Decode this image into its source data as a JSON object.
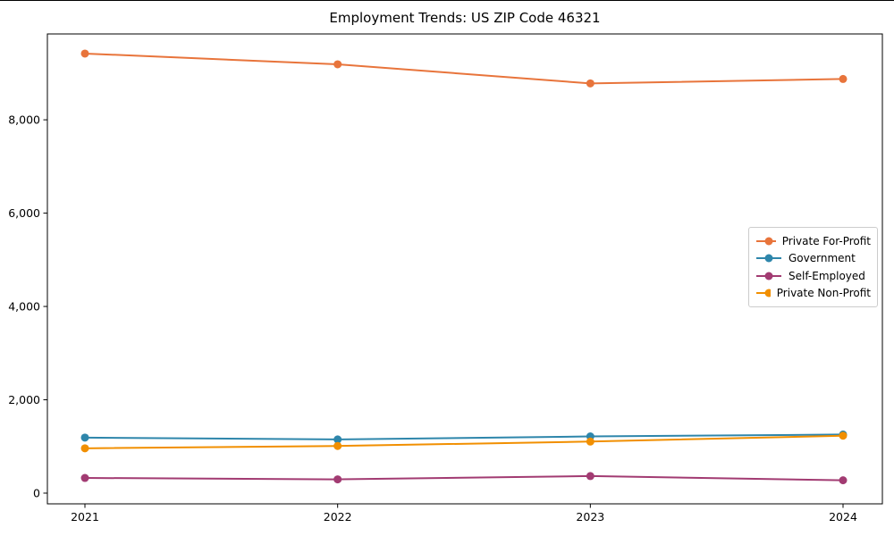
{
  "chart_data": {
    "type": "line",
    "title": "Employment Trends: US ZIP Code 46321",
    "x": [
      2021,
      2022,
      2023,
      2024
    ],
    "x_labels": [
      "2021",
      "2022",
      "2023",
      "2024"
    ],
    "series": [
      {
        "name": "Private For-Profit",
        "color": "#E8743B",
        "values": [
          9420,
          9190,
          8780,
          8875
        ]
      },
      {
        "name": "Government",
        "color": "#2E86AB",
        "values": [
          1190,
          1150,
          1215,
          1255
        ]
      },
      {
        "name": "Self-Employed",
        "color": "#A23B72",
        "values": [
          325,
          295,
          365,
          275
        ]
      },
      {
        "name": "Private Non-Profit",
        "color": "#F18F01",
        "values": [
          960,
          1010,
          1105,
          1230
        ]
      }
    ],
    "yticks": [
      0,
      2000,
      4000,
      6000,
      8000
    ],
    "ytick_labels": [
      "0",
      "2,000",
      "4,000",
      "6,000",
      "8,000"
    ],
    "ylim": [
      -230,
      9840
    ],
    "xlabel": "",
    "ylabel": "",
    "grid": false,
    "legend_position": "center right",
    "marker": "circle",
    "line_width": 2,
    "marker_radius": 4.5,
    "text_color": "#000000",
    "axes_color": "#000000",
    "legend_border_color": "#cccccc",
    "background_color": "#ffffff"
  }
}
